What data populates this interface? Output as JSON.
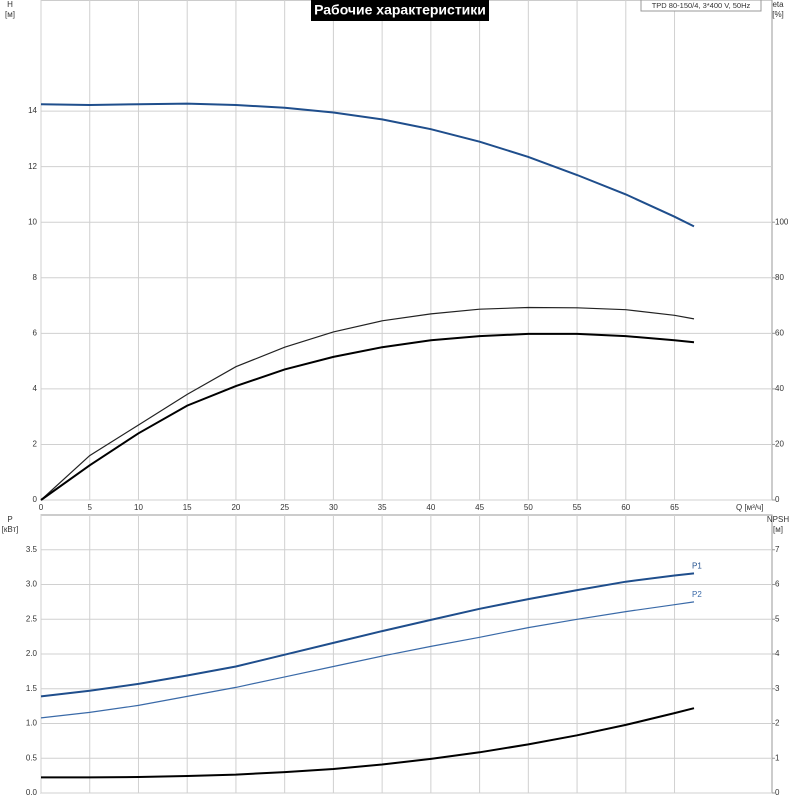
{
  "chart_data": [
    {
      "type": "line",
      "title": "Рабочие характеристики",
      "subtitle": "TPD 80-150/4, 3*400 V, 50Hz",
      "x": [
        0,
        5,
        10,
        15,
        20,
        25,
        30,
        35,
        40,
        45,
        50,
        55,
        60,
        65,
        67
      ],
      "xlim": [
        0,
        75
      ],
      "xticks": [
        0,
        5,
        10,
        15,
        20,
        25,
        30,
        35,
        40,
        45,
        50,
        55,
        60,
        65
      ],
      "xlabel": "Q [м³/ч]",
      "ylabel": [
        "H",
        "[м]"
      ],
      "ylim": [
        0,
        18
      ],
      "yticks": [
        0,
        2,
        4,
        6,
        8,
        10,
        12,
        14
      ],
      "y2label": [
        "eta",
        "[%]"
      ],
      "y2lim": [
        0,
        180
      ],
      "y2ticks": [
        0,
        20,
        40,
        60,
        80,
        100
      ],
      "grid": true,
      "series": [
        {
          "color": "#1f4e8c",
          "values": [
            14.25,
            14.22,
            14.25,
            14.27,
            14.22,
            14.12,
            13.95,
            13.7,
            13.35,
            12.9,
            12.35,
            11.7,
            11.0,
            10.2,
            9.85
          ]
        },
        {
          "color": "#222222",
          "axis": "y2",
          "values": [
            0,
            16,
            27,
            38,
            48,
            55,
            60.5,
            64.5,
            67,
            68.7,
            69.3,
            69.2,
            68.5,
            66.5,
            65.2
          ]
        },
        {
          "color": "#000000",
          "axis": "y2",
          "values": [
            0,
            12.5,
            24,
            34,
            41,
            47,
            51.5,
            55,
            57.5,
            59,
            59.8,
            59.8,
            59,
            57.5,
            56.8
          ]
        }
      ]
    },
    {
      "type": "line",
      "x": [
        0,
        5,
        10,
        15,
        20,
        25,
        30,
        35,
        40,
        45,
        50,
        55,
        60,
        65,
        67
      ],
      "xlim": [
        0,
        75
      ],
      "ylabel": [
        "P",
        "[кВт]"
      ],
      "ylim": [
        0,
        4
      ],
      "yticks": [
        {
          "value": 0,
          "label": "0.0"
        },
        0.5,
        {
          "value": 1,
          "label": "1.0"
        },
        1.5,
        {
          "value": 2,
          "label": "2.0"
        },
        2.5,
        {
          "value": 3,
          "label": "3.0"
        },
        3.5
      ],
      "y2label": [
        "NPSH",
        "[м]"
      ],
      "y2lim": [
        0,
        8
      ],
      "y2ticks": [
        0,
        1,
        2,
        3,
        4,
        5,
        6,
        7
      ],
      "grid": true,
      "series": [
        {
          "name": "P1",
          "color": "#1f4e8c",
          "values": [
            1.39,
            1.47,
            1.57,
            1.69,
            1.82,
            1.99,
            2.16,
            2.33,
            2.49,
            2.65,
            2.79,
            2.92,
            3.04,
            3.13,
            3.16
          ]
        },
        {
          "name": "P2",
          "color": "#3a6aa8",
          "values": [
            1.08,
            1.16,
            1.26,
            1.39,
            1.52,
            1.67,
            1.82,
            1.97,
            2.11,
            2.24,
            2.38,
            2.5,
            2.61,
            2.71,
            2.75
          ]
        },
        {
          "color": "#000000",
          "axis": "y2",
          "values": [
            0.45,
            0.45,
            0.46,
            0.49,
            0.53,
            0.6,
            0.69,
            0.82,
            0.98,
            1.17,
            1.4,
            1.66,
            1.96,
            2.3,
            2.44
          ]
        }
      ]
    }
  ]
}
